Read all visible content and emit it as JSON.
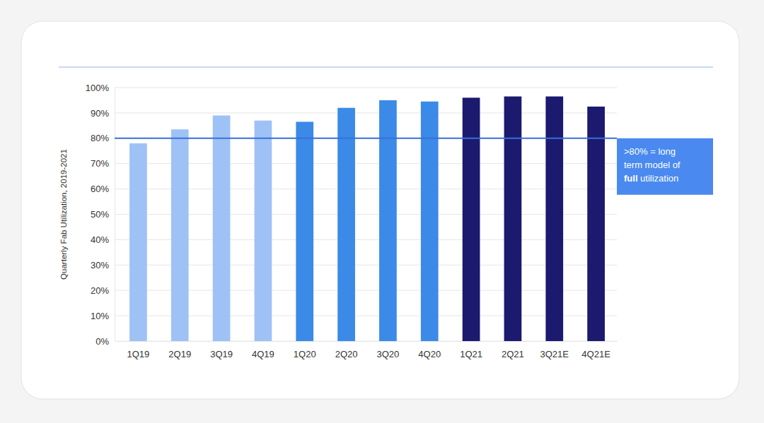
{
  "chart_data": {
    "type": "bar",
    "y_label": "Quarterly Fab Utilization, 2019-2021",
    "categories": [
      "1Q19",
      "2Q19",
      "3Q19",
      "4Q19",
      "1Q20",
      "2Q20",
      "3Q20",
      "4Q20",
      "1Q21",
      "2Q21",
      "3Q21E",
      "4Q21E"
    ],
    "values": [
      78,
      83.5,
      89,
      87,
      86.5,
      92,
      95,
      94.5,
      96,
      96.5,
      96.5,
      92.5
    ],
    "colors": [
      "#9fc2f6",
      "#9fc2f6",
      "#9fc2f6",
      "#9fc2f6",
      "#3b8ae8",
      "#3b8ae8",
      "#3b8ae8",
      "#3b8ae8",
      "#1b1a6f",
      "#1b1a6f",
      "#1b1a6f",
      "#1b1a6f"
    ],
    "ylim": [
      0,
      100
    ],
    "yticks": [
      {
        "value": 0,
        "label": "0%"
      },
      {
        "value": 10,
        "label": "10%"
      },
      {
        "value": 20,
        "label": "20%"
      },
      {
        "value": 30,
        "label": "30%"
      },
      {
        "value": 40,
        "label": "40%"
      },
      {
        "value": 50,
        "label": "50%"
      },
      {
        "value": 60,
        "label": "60%"
      },
      {
        "value": 70,
        "label": "70%"
      },
      {
        "value": 80,
        "label": "80%"
      },
      {
        "value": 90,
        "label": "90%"
      },
      {
        "value": 100,
        "label": "100%"
      }
    ],
    "grid": true,
    "annotation": {
      "y": 80,
      "lines": [
        ">80% = long",
        "term model of",
        "full utilization"
      ],
      "bold": "full"
    }
  }
}
